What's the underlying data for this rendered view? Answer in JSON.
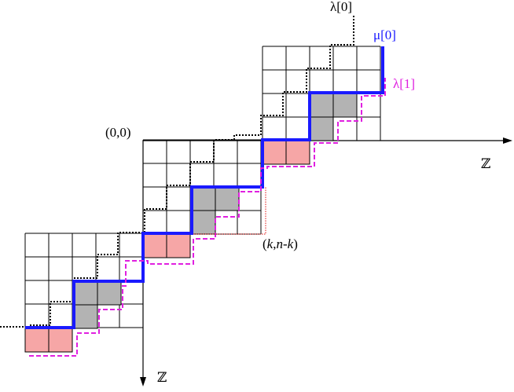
{
  "labels": {
    "lambda0": "λ[0]",
    "mu0": "μ[0]",
    "lambda1": "λ[1]",
    "origin": "(0,0)",
    "x_axis": "ℤ",
    "y_axis": "ℤ",
    "point_k": "k",
    "point_sep": ",",
    "point_n": "n",
    "point_minus": "-",
    "point_k2": "k",
    "point_open": "(",
    "point_close": ")"
  },
  "colors": {
    "mu_path": "#1a1aff",
    "lambda1_path": "#e020e0",
    "lambda0_path": "#000000",
    "guide": "#e01010",
    "shaded_cell": "#b3b3b3",
    "highlight_cell": "#f6a6a6"
  }
}
